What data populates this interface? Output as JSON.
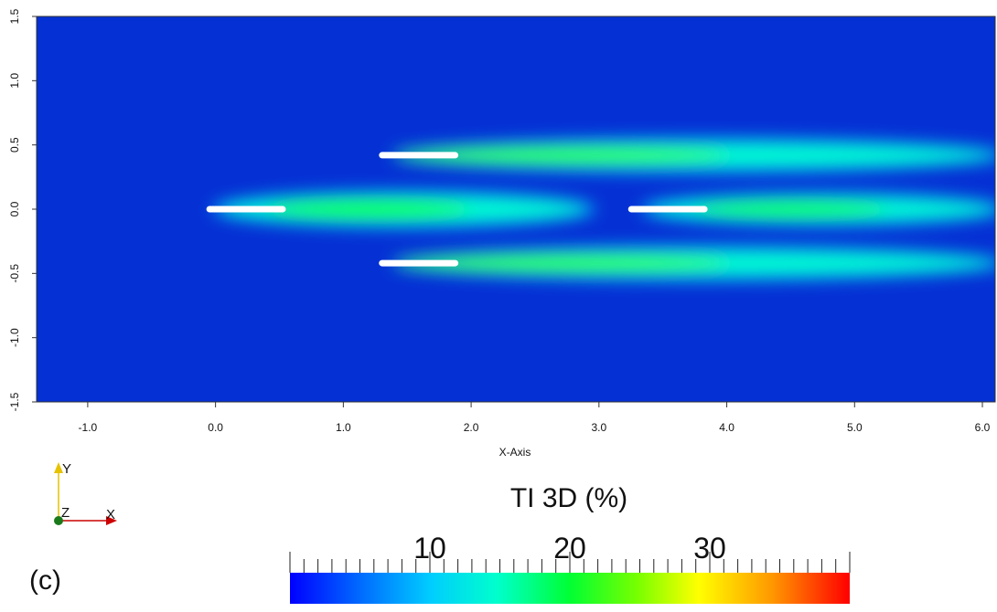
{
  "chart_data": {
    "type": "heatmap",
    "title": "",
    "xlabel": "X-Axis",
    "ylabel": "",
    "xlim": [
      -1.4,
      6.1
    ],
    "ylim": [
      -1.5,
      1.5
    ],
    "x_ticks": [
      "-1.0",
      "0.0",
      "1.0",
      "2.0",
      "3.0",
      "4.0",
      "5.0",
      "6.0"
    ],
    "y_ticks": [
      "-1.5",
      "-1.0",
      "-0.5",
      "0.0",
      "0.5",
      "1.0",
      "1.5"
    ],
    "field": "TI 3D (%)",
    "colorbar": {
      "title": "TI 3D (%)",
      "range": [
        0,
        40
      ],
      "ticks": [
        "10",
        "20",
        "30"
      ],
      "colormap": [
        "#0000ff",
        "#00aaff",
        "#00ffff",
        "#00ff44",
        "#aaff00",
        "#ffff00",
        "#ffaa00",
        "#ff0000"
      ]
    },
    "background_value": 3,
    "turbines": [
      {
        "x": 0.0,
        "y": 0.0,
        "length": 0.55
      },
      {
        "x": 1.35,
        "y": 0.42,
        "length": 0.55
      },
      {
        "x": 1.35,
        "y": -0.42,
        "length": 0.55
      },
      {
        "x": 3.3,
        "y": 0.0,
        "length": 0.55
      }
    ],
    "wakes": [
      {
        "x_start": 0.05,
        "x_end": 2.9,
        "y": 0.0,
        "width": 0.2,
        "peak_value": 18,
        "peak_x": 1.2
      },
      {
        "x_start": 1.45,
        "x_end": 6.1,
        "y": 0.42,
        "width": 0.18,
        "peak_value": 19,
        "peak_x": 2.7
      },
      {
        "x_start": 1.45,
        "x_end": 6.1,
        "y": -0.42,
        "width": 0.18,
        "peak_value": 19,
        "peak_x": 2.7
      },
      {
        "x_start": 3.4,
        "x_end": 6.1,
        "y": 0.0,
        "width": 0.17,
        "peak_value": 18,
        "peak_x": 4.5
      }
    ],
    "grid": false,
    "legend": "bottom-center"
  },
  "panel_label": "(c)",
  "orientation_triad": {
    "y_label": "Y",
    "z_label": "Z",
    "x_label": "X"
  }
}
